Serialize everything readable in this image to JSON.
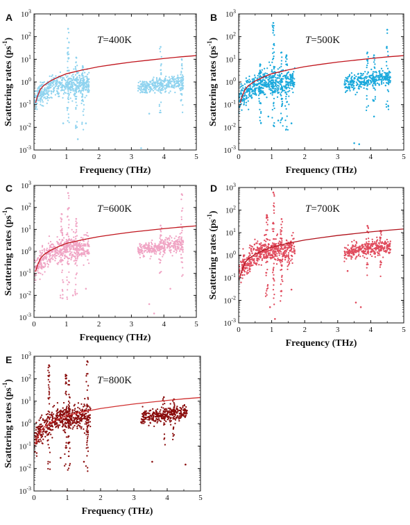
{
  "figure": {
    "panel_letters": [
      "A",
      "B",
      "C",
      "D",
      "E"
    ]
  },
  "chart_data": [
    {
      "panel": "A",
      "type": "scatter",
      "annotation_prefix": "T",
      "annotation_suffix": "=400K",
      "xlabel": "Frequency (THz)",
      "ylabel": "Scattering rates (ps",
      "ylabel_sup": "-1",
      "ylabel_close": ")",
      "xlim": [
        0,
        5
      ],
      "ylim": [
        0.001,
        1000
      ],
      "yscale": "log",
      "x_ticks": [
        "0",
        "1",
        "2",
        "3",
        "4",
        "5"
      ],
      "y_tick_mantissa": "10",
      "y_tick_exponents": [
        "-3",
        "-2",
        "-1",
        "0",
        "1",
        "2",
        "3"
      ],
      "marker_color": "#8fd3ef",
      "curve_color": "#c0141c",
      "fit_curve": {
        "x": [
          0.05,
          0.1,
          0.2,
          0.3,
          0.5,
          0.75,
          1,
          1.5,
          2,
          2.5,
          3,
          3.5,
          4,
          4.5,
          5
        ],
        "y": [
          0.12,
          0.22,
          0.48,
          0.7,
          1.1,
          1.65,
          2.3,
          3.4,
          4.7,
          6.0,
          7.5,
          9.0,
          10.8,
          12.7,
          14.5
        ]
      },
      "series": [
        {
          "band": "low",
          "x_range": [
            0.0,
            1.7
          ],
          "median_range": [
            0.12,
            0.75
          ],
          "spread_decades": 0.45,
          "spikes": [
            [
              1.05,
              220
            ],
            [
              1.3,
              12
            ],
            [
              1.5,
              5
            ]
          ],
          "outliers": [
            [
              0.9,
              0.015
            ],
            [
              1.6,
              0.015
            ],
            [
              1.35,
              0.003
            ]
          ]
        },
        {
          "band": "high",
          "x_range": [
            3.2,
            4.6
          ],
          "median_range": [
            0.55,
            1.0
          ],
          "spread_decades": 0.3,
          "spikes": [
            [
              3.9,
              35
            ],
            [
              4.55,
              10
            ]
          ],
          "outliers": [
            [
              3.55,
              0.04
            ],
            [
              3.3,
              0.0012
            ]
          ]
        }
      ]
    },
    {
      "panel": "B",
      "type": "scatter",
      "annotation_prefix": "T",
      "annotation_suffix": "=500K",
      "xlabel": "Frequency (THz)",
      "ylabel": "Scattering rates (ps",
      "ylabel_sup": "-1",
      "ylabel_close": ")",
      "xlim": [
        0,
        5
      ],
      "ylim": [
        0.001,
        1000
      ],
      "yscale": "log",
      "x_ticks": [
        "0",
        "1",
        "2",
        "3",
        "4",
        "5"
      ],
      "y_tick_mantissa": "10",
      "y_tick_exponents": [
        "-3",
        "-2",
        "-1",
        "0",
        "1",
        "2",
        "3"
      ],
      "marker_color": "#1ba9dc",
      "curve_color": "#c0141c",
      "fit_curve": {
        "x": [
          0.05,
          0.1,
          0.2,
          0.3,
          0.5,
          0.75,
          1,
          1.5,
          2,
          2.5,
          3,
          3.5,
          4,
          4.5,
          5
        ],
        "y": [
          0.12,
          0.22,
          0.48,
          0.7,
          1.1,
          1.65,
          2.3,
          3.4,
          4.7,
          6.0,
          7.5,
          9.0,
          10.8,
          12.7,
          14.5
        ]
      },
      "series": [
        {
          "band": "low",
          "x_range": [
            0.0,
            1.7
          ],
          "median_range": [
            0.1,
            1.0
          ],
          "spread_decades": 0.5,
          "spikes": [
            [
              1.05,
              400
            ],
            [
              1.3,
              20
            ],
            [
              1.45,
              15
            ],
            [
              0.65,
              6
            ]
          ],
          "outliers": [
            [
              1.6,
              0.015
            ],
            [
              0.9,
              0.03
            ],
            [
              1.2,
              0.02
            ]
          ]
        },
        {
          "band": "high",
          "x_range": [
            3.2,
            4.6
          ],
          "median_range": [
            0.8,
            1.6
          ],
          "spread_decades": 0.3,
          "spikes": [
            [
              4.5,
              200
            ],
            [
              3.9,
              20
            ],
            [
              4.1,
              15
            ]
          ],
          "outliers": [
            [
              3.5,
              0.002
            ],
            [
              3.65,
              0.0018
            ],
            [
              4.1,
              0.03
            ]
          ]
        }
      ]
    },
    {
      "panel": "C",
      "type": "scatter",
      "annotation_prefix": "T",
      "annotation_suffix": "=600K",
      "xlabel": "Frequency (THz)",
      "ylabel": "Scattering rates (ps",
      "ylabel_sup": "-1",
      "ylabel_close": ")",
      "xlim": [
        0,
        5
      ],
      "ylim": [
        0.001,
        1000
      ],
      "yscale": "log",
      "x_ticks": [
        "0",
        "1",
        "2",
        "3",
        "4",
        "5"
      ],
      "y_tick_mantissa": "10",
      "y_tick_exponents": [
        "-3",
        "-2",
        "-1",
        "0",
        "1",
        "2",
        "3"
      ],
      "marker_color": "#f0a4c4",
      "curve_color": "#c0141c",
      "fit_curve": {
        "x": [
          0.05,
          0.1,
          0.2,
          0.3,
          0.5,
          0.75,
          1,
          1.5,
          2,
          2.5,
          3,
          3.5,
          4,
          4.5,
          5
        ],
        "y": [
          0.12,
          0.22,
          0.48,
          0.7,
          1.1,
          1.65,
          2.3,
          3.4,
          4.7,
          6.0,
          7.5,
          9.0,
          10.8,
          12.7,
          14.5
        ]
      },
      "series": [
        {
          "band": "low",
          "x_range": [
            0.0,
            1.7
          ],
          "median_range": [
            0.1,
            1.3
          ],
          "spread_decades": 0.5,
          "spikes": [
            [
              1.05,
              450
            ],
            [
              0.85,
              50
            ],
            [
              1.3,
              30
            ]
          ],
          "outliers": [
            [
              1.2,
              0.01
            ],
            [
              0.9,
              0.04
            ],
            [
              1.6,
              0.02
            ]
          ]
        },
        {
          "band": "high",
          "x_range": [
            3.2,
            4.6
          ],
          "median_range": [
            1.1,
            2.2
          ],
          "spread_decades": 0.3,
          "spikes": [
            [
              4.55,
              400
            ],
            [
              3.9,
              15
            ]
          ],
          "outliers": [
            [
              3.55,
              0.004
            ],
            [
              3.7,
              0.0015
            ],
            [
              4.2,
              0.02
            ]
          ]
        }
      ]
    },
    {
      "panel": "D",
      "type": "scatter",
      "annotation_prefix": "T",
      "annotation_suffix": "=700K",
      "xlabel": "Frequency (THz)",
      "ylabel": "Scattering rates (ps",
      "ylabel_sup": "-1",
      "ylabel_close": ")",
      "xlim": [
        0,
        5
      ],
      "ylim": [
        0.001,
        1000
      ],
      "yscale": "log",
      "x_ticks": [
        "0",
        "1",
        "2",
        "3",
        "4",
        "5"
      ],
      "y_tick_mantissa": "10",
      "y_tick_exponents": [
        "-3",
        "-2",
        "-1",
        "0",
        "1",
        "2",
        "3"
      ],
      "marker_color": "#e04a5c",
      "curve_color": "#b0101a",
      "fit_curve": {
        "x": [
          0.05,
          0.1,
          0.2,
          0.3,
          0.5,
          0.75,
          1,
          1.5,
          2,
          2.5,
          3,
          3.5,
          4,
          4.5,
          5
        ],
        "y": [
          0.12,
          0.22,
          0.48,
          0.7,
          1.1,
          1.65,
          2.3,
          3.4,
          4.7,
          6.0,
          7.5,
          9.0,
          10.8,
          12.7,
          14.5
        ]
      },
      "series": [
        {
          "band": "low",
          "x_range": [
            0.0,
            1.7
          ],
          "median_range": [
            0.1,
            1.6
          ],
          "spread_decades": 0.5,
          "spikes": [
            [
              1.05,
              600
            ],
            [
              0.85,
              60
            ],
            [
              1.3,
              40
            ]
          ],
          "outliers": [
            [
              1.1,
              0.0015
            ],
            [
              0.95,
              0.005
            ],
            [
              1.6,
              0.03
            ]
          ]
        },
        {
          "band": "high",
          "x_range": [
            3.2,
            4.6
          ],
          "median_range": [
            1.3,
            2.6
          ],
          "spread_decades": 0.3,
          "spikes": [
            [
              3.9,
              20
            ],
            [
              4.3,
              12
            ]
          ],
          "outliers": [
            [
              3.55,
              0.008
            ],
            [
              3.7,
              0.005
            ],
            [
              3.3,
              0.2
            ]
          ]
        }
      ]
    },
    {
      "panel": "E",
      "type": "scatter",
      "annotation_prefix": "T",
      "annotation_suffix": "=800K",
      "xlabel": "Frequency (THz)",
      "ylabel": "Scattering rates (ps",
      "ylabel_sup": "-1",
      "ylabel_close": ")",
      "xlim": [
        0,
        5
      ],
      "ylim": [
        0.001,
        1000
      ],
      "yscale": "log",
      "x_ticks": [
        "0",
        "1",
        "2",
        "3",
        "4",
        "5"
      ],
      "y_tick_mantissa": "10",
      "y_tick_exponents": [
        "-3",
        "-2",
        "-1",
        "0",
        "1",
        "2",
        "3"
      ],
      "marker_color": "#8a0d0d",
      "curve_color": "#d03030",
      "fit_curve": {
        "x": [
          0.05,
          0.1,
          0.2,
          0.3,
          0.5,
          0.75,
          1,
          1.5,
          2,
          2.5,
          3,
          3.5,
          4,
          4.5,
          5
        ],
        "y": [
          0.12,
          0.22,
          0.48,
          0.7,
          1.1,
          1.65,
          2.3,
          3.4,
          4.7,
          6.0,
          7.5,
          9.0,
          10.8,
          12.7,
          14.5
        ]
      },
      "series": [
        {
          "band": "low",
          "x_range": [
            0.0,
            1.7
          ],
          "median_range": [
            0.12,
            2.0
          ],
          "spread_decades": 0.5,
          "spikes": [
            [
              0.45,
              400
            ],
            [
              0.95,
              150
            ],
            [
              1.05,
              80
            ],
            [
              1.6,
              600
            ]
          ],
          "outliers": [
            [
              1.0,
              0.001
            ],
            [
              1.5,
              0.02
            ],
            [
              0.8,
              0.03
            ]
          ]
        },
        {
          "band": "high",
          "x_range": [
            3.2,
            4.6
          ],
          "median_range": [
            1.6,
            3.2
          ],
          "spread_decades": 0.3,
          "spikes": [
            [
              3.9,
              15
            ],
            [
              4.2,
              12
            ]
          ],
          "outliers": [
            [
              3.55,
              0.02
            ],
            [
              4.55,
              0.015
            ]
          ]
        }
      ]
    }
  ]
}
